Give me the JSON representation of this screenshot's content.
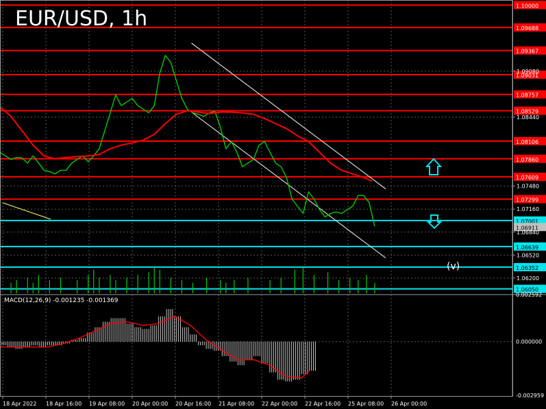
{
  "header": {
    "title": "EUR/USD, 1h"
  },
  "indicator": {
    "macd_label": "MACD(12,26,9) -0.001235 -0.001369",
    "wave_label": "(v)"
  },
  "colors": {
    "background": "#000000",
    "grid": "#5a5a5a",
    "price_line": "#00cc00",
    "moving_average": "#ff0000",
    "resistance_line": "#ff0000",
    "support_line": "#00e5ee",
    "channel": "#ffffff",
    "arrow": "#00e5ee",
    "volume": "#00cc00",
    "macd_histogram": "#c8c8c8",
    "macd_signal": "#ff0000"
  },
  "icons": {
    "up_arrow": "arrow-up-icon",
    "down_arrow": "arrow-down-icon"
  },
  "chart_data": {
    "type": "line",
    "x_ticks": [
      "18 Apr 2022",
      "18 Apr 16:00",
      "19 Apr 08:00",
      "20 Apr 00:00",
      "20 Apr 16:00",
      "21 Apr 08:00",
      "22 Apr 00:00",
      "22 Apr 16:00",
      "25 Apr 08:00",
      "26 Apr 00:00"
    ],
    "y_ticks": [
      "1.09080",
      "1.08440",
      "1.07480",
      "1.07160",
      "1.06840",
      "1.06520",
      "1.06200"
    ],
    "ylim": [
      1.0597,
      1.1007
    ],
    "series": [
      {
        "kind": "price",
        "values": [
          [
            0,
            1.0795
          ],
          [
            4,
            1.079
          ],
          [
            8,
            1.0785
          ],
          [
            12,
            1.0788
          ],
          [
            16,
            1.0787
          ],
          [
            20,
            1.078
          ],
          [
            24,
            1.079
          ],
          [
            28,
            1.078
          ],
          [
            32,
            1.077
          ],
          [
            36,
            1.0768
          ],
          [
            40,
            1.0765
          ],
          [
            44,
            1.077
          ],
          [
            48,
            1.077
          ],
          [
            52,
            1.078
          ],
          [
            56,
            1.0785
          ],
          [
            60,
            1.079
          ],
          [
            64,
            1.0782
          ],
          [
            68,
            1.079
          ],
          [
            72,
            1.08
          ],
          [
            76,
            1.0825
          ],
          [
            80,
            1.085
          ],
          [
            84,
            1.0875
          ],
          [
            88,
            1.086
          ],
          [
            92,
            1.0865
          ],
          [
            96,
            1.087
          ],
          [
            100,
            1.086
          ],
          [
            104,
            1.0855
          ],
          [
            108,
            1.085
          ],
          [
            112,
            1.086
          ],
          [
            116,
            1.0905
          ],
          [
            120,
            1.093
          ],
          [
            124,
            1.092
          ],
          [
            128,
            1.0895
          ],
          [
            132,
            1.087
          ],
          [
            136,
            1.0855
          ],
          [
            140,
            1.085
          ],
          [
            144,
            1.0848
          ],
          [
            148,
            1.0845
          ],
          [
            152,
            1.085
          ],
          [
            156,
            1.0852
          ],
          [
            160,
            1.083
          ],
          [
            164,
            1.08
          ],
          [
            168,
            1.081
          ],
          [
            172,
            1.0795
          ],
          [
            176,
            1.0775
          ],
          [
            180,
            1.078
          ],
          [
            184,
            1.0785
          ],
          [
            188,
            1.0805
          ],
          [
            192,
            1.081
          ],
          [
            196,
            1.0795
          ],
          [
            200,
            1.078
          ],
          [
            204,
            1.0775
          ],
          [
            208,
            1.076
          ],
          [
            212,
            1.073
          ],
          [
            216,
            1.072
          ],
          [
            220,
            1.071
          ],
          [
            224,
            1.074
          ],
          [
            228,
            1.073
          ],
          [
            232,
            1.0715
          ],
          [
            236,
            1.0705
          ],
          [
            240,
            1.071
          ],
          [
            244,
            1.0712
          ],
          [
            248,
            1.071
          ],
          [
            252,
            1.0715
          ],
          [
            256,
            1.072
          ],
          [
            260,
            1.0735
          ],
          [
            264,
            1.0735
          ],
          [
            268,
            1.0725
          ],
          [
            272,
            1.0692
          ]
        ]
      },
      {
        "kind": "moving_average",
        "values": [
          [
            0,
            1.0858
          ],
          [
            8,
            1.0845
          ],
          [
            16,
            1.0825
          ],
          [
            24,
            1.0805
          ],
          [
            32,
            1.079
          ],
          [
            40,
            1.0786
          ],
          [
            48,
            1.0788
          ],
          [
            56,
            1.0789
          ],
          [
            64,
            1.079
          ],
          [
            72,
            1.0792
          ],
          [
            80,
            1.08
          ],
          [
            88,
            1.0805
          ],
          [
            96,
            1.0808
          ],
          [
            104,
            1.0812
          ],
          [
            112,
            1.082
          ],
          [
            120,
            1.0835
          ],
          [
            128,
            1.0848
          ],
          [
            136,
            1.0853
          ],
          [
            144,
            1.0851
          ],
          [
            152,
            1.0849
          ],
          [
            160,
            1.0851
          ],
          [
            168,
            1.0851
          ],
          [
            176,
            1.085
          ],
          [
            184,
            1.0848
          ],
          [
            192,
            1.0842
          ],
          [
            200,
            1.0835
          ],
          [
            208,
            1.0828
          ],
          [
            216,
            1.0818
          ],
          [
            224,
            1.081
          ],
          [
            232,
            1.0795
          ],
          [
            240,
            1.078
          ],
          [
            248,
            1.077
          ],
          [
            256,
            1.0765
          ],
          [
            264,
            1.076
          ],
          [
            270,
            1.0755
          ]
        ]
      }
    ],
    "levels": {
      "resistance": [
        "1.10000",
        "1.09688",
        "1.09367",
        "1.09031",
        "1.08757",
        "1.08529",
        "1.08106",
        "1.07860",
        "1.07609",
        "1.07299"
      ],
      "support": [
        "1.07001",
        "1.06639",
        "1.06352",
        "1.06050"
      ],
      "current_price": "1.06911"
    },
    "channel": {
      "upper": [
        [
          139,
          1.0947
        ],
        [
          280,
          1.0744
        ]
      ],
      "lower": [
        [
          139,
          1.0851
        ],
        [
          280,
          1.0648
        ]
      ]
    },
    "volume": [
      [
        8,
        0.4
      ],
      [
        12,
        0.5
      ],
      [
        20,
        0.6
      ],
      [
        24,
        0.4
      ],
      [
        28,
        0.7
      ],
      [
        36,
        0.5
      ],
      [
        44,
        0.6
      ],
      [
        56,
        0.5
      ],
      [
        64,
        0.7
      ],
      [
        68,
        0.9
      ],
      [
        72,
        0.6
      ],
      [
        80,
        0.7
      ],
      [
        84,
        0.5
      ],
      [
        92,
        0.6
      ],
      [
        100,
        0.7
      ],
      [
        108,
        0.8
      ],
      [
        112,
        1.0
      ],
      [
        116,
        0.9
      ],
      [
        124,
        0.6
      ],
      [
        132,
        0.5
      ],
      [
        140,
        0.4
      ],
      [
        150,
        0.6
      ],
      [
        160,
        0.5
      ],
      [
        164,
        0.4
      ],
      [
        170,
        0.5
      ],
      [
        180,
        0.6
      ],
      [
        196,
        0.5
      ],
      [
        204,
        0.6
      ],
      [
        214,
        0.9
      ],
      [
        220,
        1.0
      ],
      [
        228,
        0.7
      ],
      [
        238,
        0.8
      ],
      [
        246,
        0.5
      ],
      [
        254,
        0.6
      ],
      [
        260,
        0.5
      ],
      [
        266,
        0.7
      ],
      [
        272,
        0.4
      ]
    ],
    "macd": {
      "yticks": [
        "0.002592",
        "0.000000",
        "-0.002959"
      ],
      "ylim": [
        -0.003,
        0.0026
      ],
      "histogram": [
        [
          0,
          -0.0002
        ],
        [
          8,
          -0.0003
        ],
        [
          16,
          -0.0004
        ],
        [
          24,
          -0.0003
        ],
        [
          32,
          -0.0002
        ],
        [
          40,
          -0.0003
        ],
        [
          48,
          -0.0002
        ],
        [
          56,
          -0.0002
        ],
        [
          64,
          -0.0001
        ],
        [
          72,
          0.0001
        ],
        [
          80,
          0.0002
        ],
        [
          88,
          0.0005
        ],
        [
          96,
          0.0008
        ],
        [
          104,
          0.0011
        ],
        [
          112,
          0.0013
        ],
        [
          120,
          0.0013
        ],
        [
          128,
          0.001
        ],
        [
          136,
          0.0008
        ],
        [
          144,
          0.0007
        ],
        [
          152,
          0.0009
        ],
        [
          160,
          0.0014
        ],
        [
          168,
          0.0018
        ],
        [
          176,
          0.0014
        ],
        [
          184,
          0.0008
        ],
        [
          192,
          0.0004
        ],
        [
          200,
          -0.0002
        ],
        [
          208,
          -0.0004
        ],
        [
          216,
          -0.0005
        ],
        [
          224,
          -0.0008
        ],
        [
          232,
          -0.0011
        ],
        [
          240,
          -0.0013
        ],
        [
          248,
          -0.001
        ],
        [
          256,
          -0.0008
        ],
        [
          264,
          -0.0012
        ],
        [
          272,
          -0.0017
        ],
        [
          280,
          -0.0021
        ],
        [
          288,
          -0.0022
        ],
        [
          296,
          -0.0021
        ],
        [
          304,
          -0.0018
        ],
        [
          312,
          -0.0016
        ]
      ],
      "signal": [
        [
          0,
          -0.0003
        ],
        [
          16,
          -0.0003
        ],
        [
          32,
          -0.0003
        ],
        [
          48,
          -0.0003
        ],
        [
          64,
          -0.0001
        ],
        [
          80,
          0.0002
        ],
        [
          96,
          0.0006
        ],
        [
          112,
          0.001
        ],
        [
          128,
          0.0011
        ],
        [
          144,
          0.0009
        ],
        [
          160,
          0.001
        ],
        [
          176,
          0.0014
        ],
        [
          192,
          0.0009
        ],
        [
          208,
          0.0001
        ],
        [
          224,
          -0.0005
        ],
        [
          240,
          -0.001
        ],
        [
          256,
          -0.001
        ],
        [
          272,
          -0.0013
        ],
        [
          288,
          -0.0019
        ],
        [
          304,
          -0.002
        ],
        [
          312,
          -0.0016
        ]
      ]
    }
  }
}
